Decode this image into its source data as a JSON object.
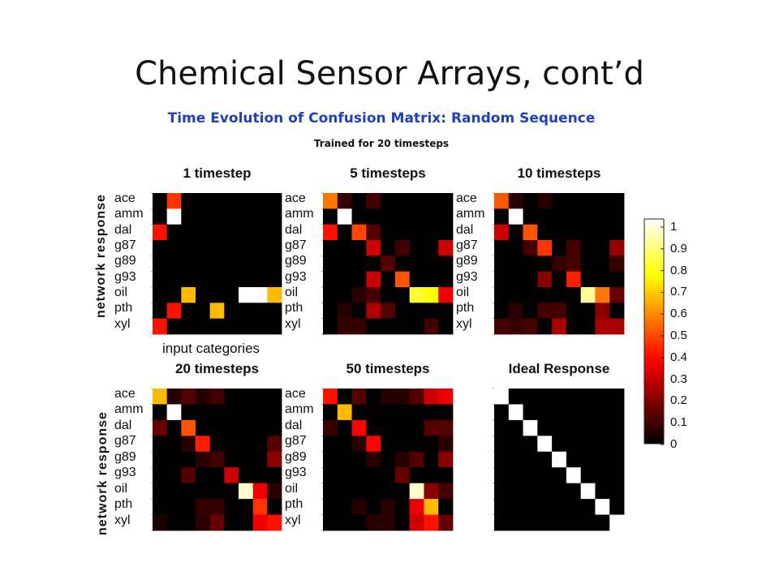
{
  "slide_title": "Chemical Sensor Arrays, cont’d",
  "subtitle": "Time Evolution of Confusion Matrix: Random Sequence",
  "trained_note": "Trained for 20 timesteps",
  "ylabel": "network response",
  "xlabel": "input categories",
  "colors": {
    "colormap": "hot",
    "subtitle": "#1f3fbf"
  },
  "chart_data": [
    {
      "type": "heatmap",
      "title": "1 timestep",
      "row_labels": [
        "ace",
        "amm",
        "dal",
        "g87",
        "g89",
        "g93",
        "oil",
        "pth",
        "xyl"
      ],
      "values": [
        [
          0,
          0.45,
          0,
          0,
          0,
          0,
          0,
          0,
          0
        ],
        [
          0,
          1.0,
          0,
          0,
          0,
          0,
          0,
          0,
          0
        ],
        [
          0.4,
          0,
          0,
          0,
          0,
          0,
          0,
          0,
          0
        ],
        [
          0,
          0,
          0,
          0,
          0,
          0,
          0,
          0,
          0
        ],
        [
          0,
          0,
          0,
          0,
          0,
          0,
          0,
          0,
          0
        ],
        [
          0,
          0,
          0,
          0,
          0,
          0,
          0,
          0,
          0
        ],
        [
          0,
          0,
          0.65,
          0,
          0,
          0,
          1.0,
          1.0,
          0.65
        ],
        [
          0,
          0.4,
          0,
          0,
          0.65,
          0,
          0,
          0,
          0
        ],
        [
          0.4,
          0,
          0,
          0,
          0,
          0,
          0,
          0,
          0
        ]
      ]
    },
    {
      "type": "heatmap",
      "title": "5 timesteps",
      "row_labels": [
        "ace",
        "amm",
        "dal",
        "g87",
        "g89",
        "g93",
        "oil",
        "pth",
        "xyl"
      ],
      "values": [
        [
          0.55,
          0.08,
          0,
          0.1,
          0,
          0,
          0,
          0,
          0
        ],
        [
          0,
          1.0,
          0,
          0,
          0,
          0,
          0,
          0,
          0
        ],
        [
          0.4,
          0,
          0.48,
          0.12,
          0,
          0,
          0,
          0,
          0
        ],
        [
          0,
          0,
          0,
          0.3,
          0,
          0.1,
          0,
          0,
          0.3
        ],
        [
          0,
          0,
          0,
          0,
          0.12,
          0,
          0,
          0,
          0
        ],
        [
          0,
          0,
          0,
          0.3,
          0,
          0.5,
          0,
          0,
          0
        ],
        [
          0,
          0,
          0.06,
          0.1,
          0,
          0,
          0.8,
          0.75,
          0.35
        ],
        [
          0,
          0.06,
          0,
          0.25,
          0.12,
          0,
          0,
          0,
          0
        ],
        [
          0,
          0.08,
          0.08,
          0,
          0,
          0,
          0,
          0.1,
          0
        ]
      ]
    },
    {
      "type": "heatmap",
      "title": "10 timesteps",
      "row_labels": [
        "ace",
        "amm",
        "dal",
        "g87",
        "g89",
        "g93",
        "oil",
        "pth",
        "xyl"
      ],
      "values": [
        [
          0.5,
          0.06,
          0,
          0.06,
          0,
          0,
          0,
          0,
          0
        ],
        [
          0,
          1.0,
          0,
          0,
          0,
          0,
          0,
          0,
          0
        ],
        [
          0.3,
          0,
          0.5,
          0,
          0,
          0,
          0,
          0,
          0
        ],
        [
          0,
          0,
          0.1,
          0.45,
          0,
          0.1,
          0,
          0,
          0.22
        ],
        [
          0,
          0,
          0,
          0,
          0.08,
          0.1,
          0,
          0,
          0.08
        ],
        [
          0,
          0,
          0,
          0.2,
          0,
          0.42,
          0,
          0,
          0
        ],
        [
          0,
          0,
          0,
          0,
          0,
          0,
          0.9,
          0.55,
          0.15
        ],
        [
          0,
          0.06,
          0,
          0.1,
          0.1,
          0,
          0,
          0.2,
          0
        ],
        [
          0.1,
          0.08,
          0.1,
          0,
          0.25,
          0,
          0,
          0.25,
          0.25
        ]
      ]
    },
    {
      "type": "heatmap",
      "title": "20 timesteps",
      "row_labels": [
        "ace",
        "amm",
        "dal",
        "g87",
        "g89",
        "g93",
        "oil",
        "pth",
        "xyl"
      ],
      "values": [
        [
          0.65,
          0.06,
          0.12,
          0.06,
          0.1,
          0,
          0,
          0,
          0
        ],
        [
          0,
          1.0,
          0,
          0,
          0,
          0,
          0,
          0,
          0
        ],
        [
          0.15,
          0,
          0.5,
          0,
          0,
          0,
          0,
          0,
          0
        ],
        [
          0,
          0,
          0.06,
          0.42,
          0,
          0,
          0,
          0,
          0.12
        ],
        [
          0,
          0,
          0,
          0.06,
          0.1,
          0,
          0,
          0,
          0.2
        ],
        [
          0,
          0,
          0.12,
          0,
          0,
          0.3,
          0,
          0,
          0
        ],
        [
          0,
          0,
          0,
          0,
          0,
          0,
          0.95,
          0.35,
          0.06
        ],
        [
          0,
          0,
          0,
          0.08,
          0.08,
          0,
          0,
          0.45,
          0
        ],
        [
          0.04,
          0,
          0,
          0.06,
          0.15,
          0,
          0,
          0.35,
          0.4
        ]
      ]
    },
    {
      "type": "heatmap",
      "title": "50 timesteps",
      "row_labels": [
        "ace",
        "amm",
        "dal",
        "g87",
        "g89",
        "g93",
        "oil",
        "pth",
        "xyl"
      ],
      "values": [
        [
          0.4,
          0,
          0.12,
          0,
          0.06,
          0.06,
          0.12,
          0.3,
          0.35
        ],
        [
          0,
          0.65,
          0,
          0,
          0,
          0,
          0,
          0,
          0
        ],
        [
          0.08,
          0,
          0.38,
          0,
          0,
          0,
          0,
          0.12,
          0.12
        ],
        [
          0,
          0,
          0.06,
          0.38,
          0,
          0,
          0,
          0,
          0.06
        ],
        [
          0,
          0,
          0,
          0.06,
          0,
          0.06,
          0.12,
          0,
          0.2
        ],
        [
          0,
          0,
          0,
          0,
          0,
          0.15,
          0,
          0,
          0
        ],
        [
          0,
          0,
          0,
          0,
          0,
          0,
          0.95,
          0.2,
          0.1
        ],
        [
          0,
          0,
          0.06,
          0,
          0.06,
          0,
          0.35,
          0.65,
          0
        ],
        [
          0,
          0,
          0,
          0.06,
          0.06,
          0,
          0.3,
          0.4,
          0.15
        ]
      ]
    },
    {
      "type": "heatmap",
      "title": "Ideal Response",
      "row_labels": [],
      "values": [
        [
          1,
          0,
          0,
          0,
          0,
          0,
          0,
          0,
          0
        ],
        [
          0,
          1,
          0,
          0,
          0,
          0,
          0,
          0,
          0
        ],
        [
          0,
          0,
          1,
          0,
          0,
          0,
          0,
          0,
          0
        ],
        [
          0,
          0,
          0,
          1,
          0,
          0,
          0,
          0,
          0
        ],
        [
          0,
          0,
          0,
          0,
          1,
          0,
          0,
          0,
          0
        ],
        [
          0,
          0,
          0,
          0,
          0,
          1,
          0,
          0,
          0
        ],
        [
          0,
          0,
          0,
          0,
          0,
          0,
          1,
          0,
          0
        ],
        [
          0,
          0,
          0,
          0,
          0,
          0,
          0,
          1,
          0
        ],
        [
          0,
          0,
          0,
          0,
          0,
          0,
          0,
          0,
          1
        ]
      ]
    }
  ],
  "colorbar": {
    "ticks": [
      "1",
      "0.9",
      "0.8",
      "0.7",
      "0.6",
      "0.5",
      "0.4",
      "0.3",
      "0.2",
      "0.1",
      "0"
    ],
    "range": [
      0,
      1
    ]
  }
}
